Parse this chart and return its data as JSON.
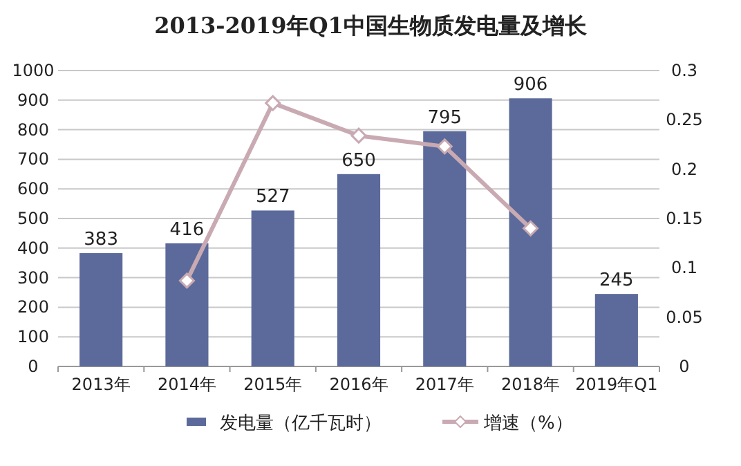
{
  "chart_data": {
    "type": "bar",
    "title": "2013-2019年Q1中国生物质发电量及增长",
    "categories": [
      "2013年",
      "2014年",
      "2015年",
      "2016年",
      "2017年",
      "2018年",
      "2019年Q1"
    ],
    "series": [
      {
        "name": "发电量（亿千瓦时）",
        "color": "#5b6a9a",
        "values": [
          383,
          416,
          527,
          650,
          795,
          906,
          245
        ],
        "value_labels": [
          "383",
          "416",
          "527",
          "650",
          "795",
          "906",
          "245"
        ]
      },
      {
        "name": "增速（%）",
        "type": "line",
        "axis": "y2",
        "color": "#c9aab2",
        "marker": "diamond",
        "values": [
          null,
          0.087,
          0.267,
          0.234,
          0.223,
          0.14,
          null
        ]
      }
    ],
    "ylim": [
      0,
      1000
    ],
    "yticks": [
      0,
      100,
      200,
      300,
      400,
      500,
      600,
      700,
      800,
      900,
      1000
    ],
    "y2lim": [
      0,
      0.3
    ],
    "y2ticks": [
      0,
      0.05,
      0.1,
      0.15,
      0.2,
      0.25,
      0.3
    ],
    "grid": "y",
    "legend": "bottom"
  }
}
